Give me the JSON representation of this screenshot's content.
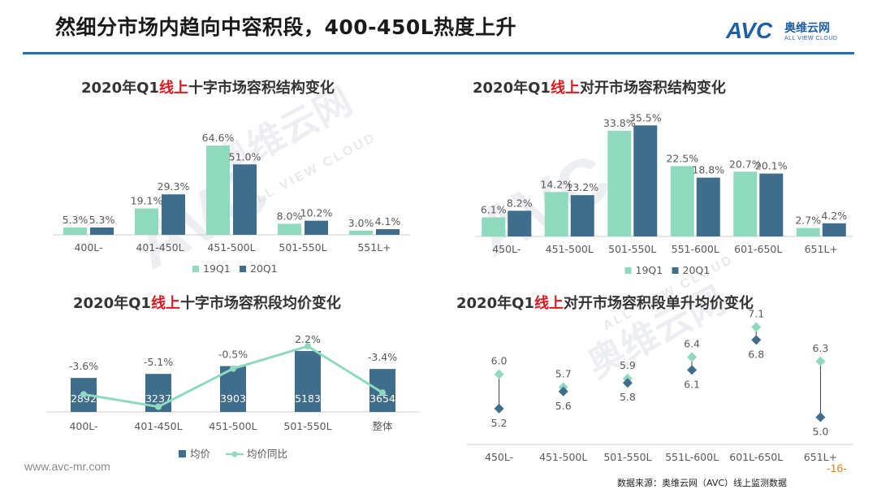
{
  "header": {
    "title": "然细分市场内趋向中容积段，400-450L热度上升",
    "logo_mark": "AVC",
    "logo_cn": "奥维云网",
    "logo_en": "ALL VIEW CLOUD",
    "brand_color": "#1f5fa8"
  },
  "watermark": {
    "mark": "AVC",
    "cn": "奥维云网",
    "en": "ALL VIEW CLOUD"
  },
  "footer": {
    "site": "www.avc-mr.com",
    "source": "数据来源：奥维云网（AVC）线上监测数据",
    "page": "-16-"
  },
  "colors": {
    "light": "#8fd9bf",
    "dark": "#3f6d8c",
    "line": "#8fd9bf",
    "accent": "#e0161c"
  },
  "chart_data": [
    {
      "type": "bar",
      "title_pre": "2020年Q1",
      "title_hl": "线上",
      "title_post": "十字市场容积结构变化",
      "categories": [
        "400L-",
        "401-450L",
        "451-500L",
        "501-550L",
        "551L+"
      ],
      "series": [
        {
          "name": "19Q1",
          "values": [
            5.3,
            19.1,
            64.6,
            8.0,
            3.0
          ],
          "labels": [
            "5.3%",
            "19.1%",
            "64.6%",
            "8.0%",
            "3.0%"
          ]
        },
        {
          "name": "20Q1",
          "values": [
            5.3,
            29.3,
            51.0,
            10.2,
            4.1
          ],
          "labels": [
            "5.3%",
            "29.3%",
            "51.0%",
            "10.2%",
            "4.1%"
          ]
        }
      ],
      "ylim": [
        0,
        70
      ],
      "legend": "bottom"
    },
    {
      "type": "bar",
      "title_pre": "2020年Q1",
      "title_hl": "线上",
      "title_post": "对开市场容积结构变化",
      "categories": [
        "450L-",
        "451-500L",
        "501-550L",
        "551-600L",
        "601-650L",
        "651L+"
      ],
      "series": [
        {
          "name": "19Q1",
          "values": [
            6.1,
            14.2,
            33.8,
            22.5,
            20.7,
            2.7
          ],
          "labels": [
            "6.1%",
            "14.2%",
            "33.8%",
            "22.5%",
            "20.7%",
            "2.7%"
          ]
        },
        {
          "name": "20Q1",
          "values": [
            8.2,
            13.2,
            35.5,
            18.8,
            20.1,
            4.2
          ],
          "labels": [
            "8.2%",
            "13.2%",
            "35.5%",
            "18.8%",
            "20.1%",
            "4.2%"
          ]
        }
      ],
      "ylim": [
        0,
        40
      ],
      "legend": "bottom"
    },
    {
      "type": "bar+line",
      "title_pre": "2020年Q1",
      "title_hl": "线上",
      "title_post": "十字市场容积段均价变化",
      "categories": [
        "400L-",
        "401-450L",
        "451-500L",
        "501-550L",
        "整体"
      ],
      "bars": {
        "name": "均价",
        "values": [
          2892,
          3237,
          3903,
          5183,
          3654
        ],
        "labels": [
          "2892",
          "3237",
          "3903",
          "5183",
          "3654"
        ]
      },
      "line": {
        "name": "均价同比",
        "values": [
          -3.6,
          -5.1,
          -0.5,
          2.2,
          -3.4
        ],
        "labels": [
          "-3.6%",
          "-5.1%",
          "-0.5%",
          "2.2%",
          "-3.4%"
        ]
      },
      "bar_ylim": [
        0,
        5600
      ],
      "line_ylim": [
        -7,
        3
      ],
      "legend": "bottom"
    },
    {
      "type": "dumbbell",
      "title_pre": "2020年Q1",
      "title_hl": "线上",
      "title_post": "对开市场容积段单升均价变化",
      "categories": [
        "450L-",
        "451-500L",
        "501-550L",
        "551L-600L",
        "601L-650L",
        "651L+"
      ],
      "upper": {
        "values": [
          6.0,
          5.7,
          5.9,
          6.4,
          7.1,
          6.3
        ],
        "labels": [
          "6.0",
          "5.7",
          "5.9",
          "6.4",
          "7.1",
          "6.3"
        ]
      },
      "lower": {
        "values": [
          5.2,
          5.6,
          5.8,
          6.1,
          6.8,
          5.0
        ],
        "labels": [
          "5.2",
          "5.6",
          "5.8",
          "6.1",
          "6.8",
          "5.0"
        ]
      },
      "ylim": [
        4.8,
        7.3
      ]
    }
  ]
}
